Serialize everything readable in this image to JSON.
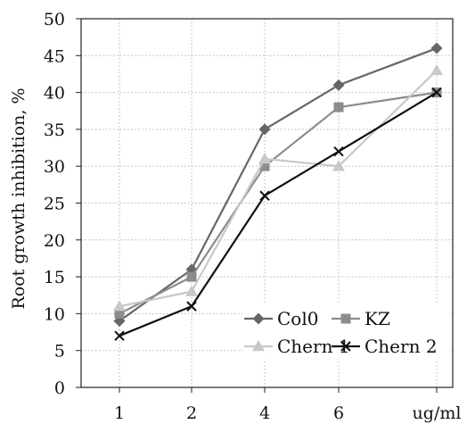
{
  "chart_data": {
    "type": "line",
    "title": "",
    "xlabel": "ug/ml",
    "ylabel": "Root growth inhibition, %",
    "categories": [
      "1",
      "2",
      "4",
      "6",
      "ug/ml"
    ],
    "ylim": [
      0,
      50
    ],
    "yticks": [
      0,
      5,
      10,
      15,
      20,
      25,
      30,
      35,
      40,
      45,
      50
    ],
    "grid": true,
    "legend_position": "bottom-right",
    "series": [
      {
        "name": "Col0",
        "marker": "diamond",
        "color": "#666666",
        "values": [
          9,
          16,
          35,
          41,
          46
        ]
      },
      {
        "name": "KZ",
        "marker": "square",
        "color": "#8c8c8c",
        "values": [
          10,
          15,
          30,
          38,
          40
        ]
      },
      {
        "name": "Chern 1",
        "marker": "triangle",
        "color": "#c8c8c8",
        "values": [
          11,
          13,
          31,
          30,
          43
        ]
      },
      {
        "name": "Chern 2",
        "marker": "x",
        "color": "#111111",
        "values": [
          7,
          11,
          26,
          32,
          40
        ]
      }
    ]
  }
}
